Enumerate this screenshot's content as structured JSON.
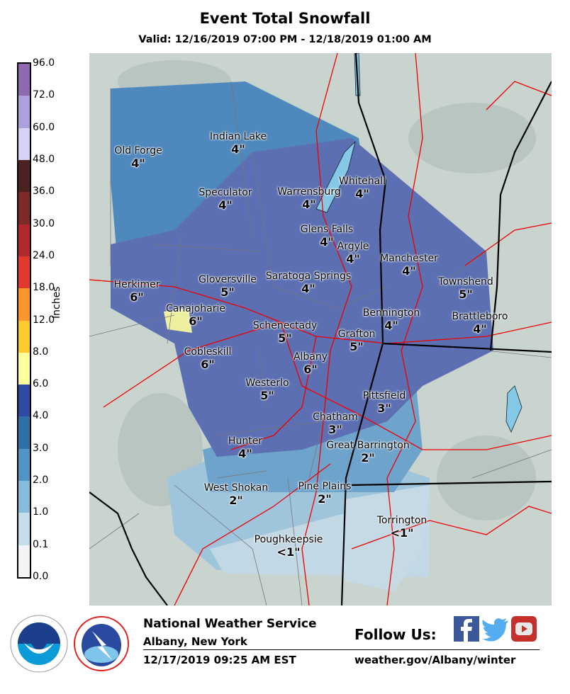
{
  "header": {
    "title": "Event Total Snowfall",
    "valid": "Valid: 12/16/2019 07:00 PM - 12/18/2019 01:00 AM"
  },
  "legend": {
    "unit": "Inches",
    "ticks": [
      "96.0",
      "72.0",
      "60.0",
      "48.0",
      "36.0",
      "30.0",
      "24.0",
      "18.0",
      "12.0",
      "8.0",
      "6.0",
      "4.0",
      "3.0",
      "2.0",
      "1.0",
      "0.1",
      "0.0"
    ],
    "colors": [
      "#8e6bb0",
      "#aea0dc",
      "#d6d4f6",
      "#4a2220",
      "#7f2a2a",
      "#b02a2e",
      "#e0392e",
      "#fb9530",
      "#fdcb2e",
      "#fefe9e",
      "#2f4aa0",
      "#306fa8",
      "#5294c6",
      "#86bbdc",
      "#c6dce8",
      "#f2f4f6"
    ]
  },
  "map": {
    "locations": [
      {
        "name": "Old Forge",
        "value": "4\""
      },
      {
        "name": "Indian Lake",
        "value": "4\""
      },
      {
        "name": "Speculator",
        "value": "4\""
      },
      {
        "name": "Warrensburg",
        "value": "4\""
      },
      {
        "name": "Whitehall",
        "value": "4\""
      },
      {
        "name": "Glens Falls",
        "value": "4\""
      },
      {
        "name": "Argyle",
        "value": "4\""
      },
      {
        "name": "Manchester",
        "value": "4\""
      },
      {
        "name": "Townshend",
        "value": "5\""
      },
      {
        "name": "Herkimer",
        "value": "6\""
      },
      {
        "name": "Gloversville",
        "value": "5\""
      },
      {
        "name": "Saratoga Springs",
        "value": "4\""
      },
      {
        "name": "Canajoharie",
        "value": "6\""
      },
      {
        "name": "Schenectady",
        "value": "5\""
      },
      {
        "name": "Bennington",
        "value": "4\""
      },
      {
        "name": "Brattleboro",
        "value": "4\""
      },
      {
        "name": "Grafton",
        "value": "5\""
      },
      {
        "name": "Cobleskill",
        "value": "6\""
      },
      {
        "name": "Albany",
        "value": "6\""
      },
      {
        "name": "Westerlo",
        "value": "5\""
      },
      {
        "name": "Pittsfield",
        "value": "3\""
      },
      {
        "name": "Chatham",
        "value": "3\""
      },
      {
        "name": "Hunter",
        "value": "4\""
      },
      {
        "name": "Great Barrington",
        "value": "2\""
      },
      {
        "name": "West Shokan",
        "value": "2\""
      },
      {
        "name": "Pine Plains",
        "value": "2\""
      },
      {
        "name": "Torrington",
        "value": "<1\""
      },
      {
        "name": "Poughkeepsie",
        "value": "<1\""
      }
    ]
  },
  "footer": {
    "org": "National Weather Service",
    "office": "Albany, New York",
    "issued": "12/17/2019 09:25 AM EST",
    "follow": "Follow Us:",
    "url": "weather.gov/Albany/winter",
    "logos": [
      "NOAA",
      "National Weather Service"
    ],
    "social_icons": [
      "facebook-icon",
      "twitter-icon",
      "youtube-icon"
    ]
  }
}
